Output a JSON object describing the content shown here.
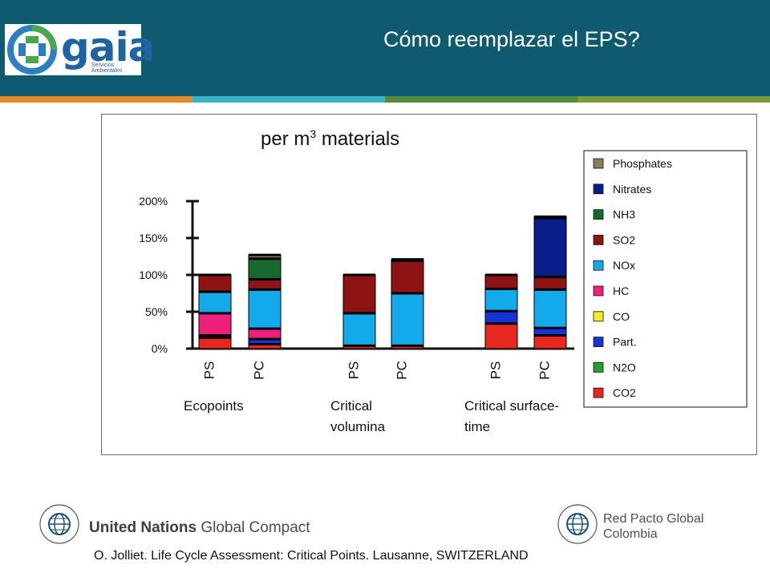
{
  "header": {
    "title": "Cómo reemplazar el EPS?",
    "logo_name": "gaia",
    "logo_subtitle": "Servicios Ambientales",
    "background_color": "#0e5a6e"
  },
  "stripe_colors": [
    "#e48b28",
    "#37b3c9",
    "#578a3c",
    "#7c9b3a"
  ],
  "chart_data": {
    "type": "bar",
    "stacked": true,
    "title_main": "per m",
    "title_sup": "3",
    "title_rest": " materials",
    "ylim": [
      0,
      200
    ],
    "yticks": [
      "0%",
      "50%",
      "100%",
      "150%",
      "200%"
    ],
    "ytick_values": [
      0,
      50,
      100,
      150,
      200
    ],
    "grid": false,
    "legend_position": "right",
    "groups": [
      {
        "label_line1": "Ecopoints",
        "label_line2": ""
      },
      {
        "label_line1": "Critical",
        "label_line2": "volumina"
      },
      {
        "label_line1": "Critical surface-",
        "label_line2": "time"
      }
    ],
    "categories": [
      "PS",
      "PC",
      "PS",
      "PC",
      "PS",
      "PC"
    ],
    "series": [
      {
        "name": "CO2",
        "color": "#e8281f",
        "values": [
          15,
          6,
          4,
          4,
          34,
          18
        ]
      },
      {
        "name": "N2O",
        "color": "#22a32a",
        "values": [
          0,
          0,
          0,
          0,
          0,
          0
        ]
      },
      {
        "name": "Part.",
        "color": "#1732d8",
        "values": [
          3,
          7,
          0,
          0,
          17,
          10
        ]
      },
      {
        "name": "CO",
        "color": "#f5ea28",
        "values": [
          0,
          0,
          0,
          0,
          0,
          0
        ]
      },
      {
        "name": "HC",
        "color": "#ef1f7c",
        "values": [
          30,
          14,
          0,
          0,
          0,
          0
        ]
      },
      {
        "name": "NOx",
        "color": "#12aaea",
        "values": [
          29,
          53,
          44,
          71,
          30,
          52
        ]
      },
      {
        "name": "SO2",
        "color": "#8e1313",
        "values": [
          23,
          14,
          52,
          44,
          19,
          17
        ]
      },
      {
        "name": "NH3",
        "color": "#17692e",
        "values": [
          0,
          28,
          0,
          0,
          0,
          0
        ]
      },
      {
        "name": "Nitrates",
        "color": "#0a1b8a",
        "values": [
          0,
          0,
          0,
          2,
          0,
          80
        ]
      },
      {
        "name": "Phosphates",
        "color": "#8b7b5b",
        "values": [
          0,
          5,
          0,
          0,
          0,
          2
        ]
      }
    ]
  },
  "footer": {
    "left_seal_text": "THE GLOBAL COMPACT",
    "left_org_bold": "United Nations",
    "left_org_rest": " Global Compact",
    "right_seal_text": "THE GLOBAL COMPACT",
    "right_line1": "Red Pacto Global",
    "right_line2": "Colombia",
    "citation": "O. Jolliet. Life Cycle Assessment: Critical Points. Lausanne, SWITZERLAND"
  }
}
